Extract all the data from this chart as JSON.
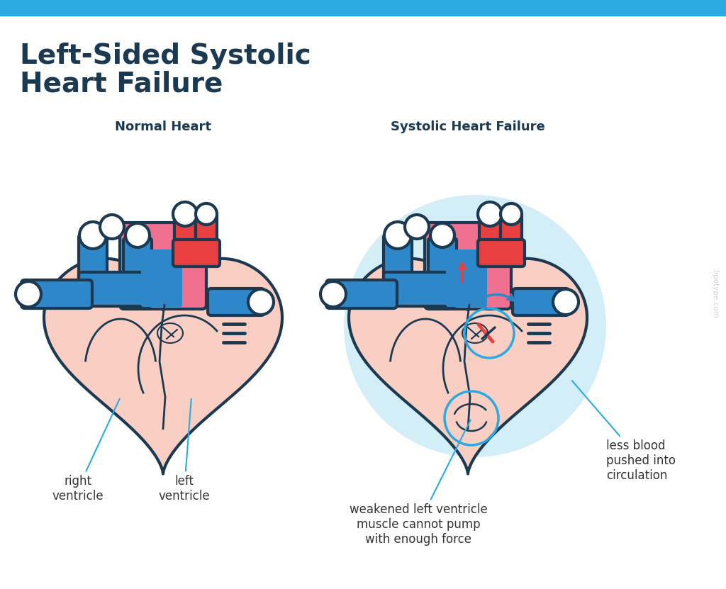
{
  "bg_color": "#ffffff",
  "top_bar_color": "#29abe2",
  "title_line1": "Left-Sided Systolic",
  "title_line2": "Heart Failure",
  "title_color": "#1b3a52",
  "title_fontsize": 28,
  "subtitle_left": "Normal Heart",
  "subtitle_right": "Systolic Heart Failure",
  "subtitle_color": "#1b3a52",
  "subtitle_fontsize": 13,
  "watermark": "lipotype.com",
  "watermark_color": "#c8c8c8",
  "heart_fill": "#f9cfc4",
  "heart_stroke": "#1b3a52",
  "blue_color": "#2e87c8",
  "blue_dark": "#1b3a52",
  "red_color": "#e84040",
  "pink_color": "#f07090",
  "white_color": "#ffffff",
  "light_blue_bg": "#d4eef8",
  "ann_color": "#29abe2",
  "ann_text_color": "#333333",
  "ann_fontsize": 12,
  "lw_main": 3.0,
  "lw_inner": 2.0
}
